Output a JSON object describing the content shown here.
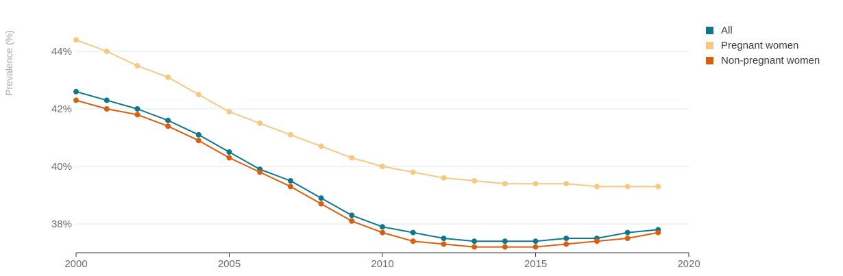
{
  "chart_data": {
    "type": "line",
    "title": "",
    "xlabel": "",
    "ylabel": "Prevalence (%)",
    "x": [
      2000,
      2001,
      2002,
      2003,
      2004,
      2005,
      2006,
      2007,
      2008,
      2009,
      2010,
      2011,
      2012,
      2013,
      2014,
      2015,
      2016,
      2017,
      2018,
      2019
    ],
    "xlim": [
      2000,
      2020
    ],
    "x_ticks": [
      {
        "value": 2000,
        "label": "2000"
      },
      {
        "value": 2005,
        "label": "2005"
      },
      {
        "value": 2010,
        "label": "2010"
      },
      {
        "value": 2015,
        "label": "2015"
      },
      {
        "value": 2020,
        "label": "2020"
      }
    ],
    "ylim": [
      37,
      45
    ],
    "y_ticks": [
      {
        "value": 38,
        "label": "38%"
      },
      {
        "value": 40,
        "label": "40%"
      },
      {
        "value": 42,
        "label": "42%"
      },
      {
        "value": 44,
        "label": "44%"
      }
    ],
    "grid": "horizontal",
    "legend_position": "top-right",
    "series": [
      {
        "name": "All",
        "color": "#10768e",
        "values": [
          42.6,
          42.3,
          42.0,
          41.6,
          41.1,
          40.5,
          39.9,
          39.5,
          38.9,
          38.3,
          37.9,
          37.7,
          37.5,
          37.4,
          37.4,
          37.4,
          37.5,
          37.5,
          37.7,
          37.8
        ]
      },
      {
        "name": "Pregnant women",
        "color": "#f9c880",
        "values": [
          44.4,
          44.0,
          43.5,
          43.1,
          42.5,
          41.9,
          41.5,
          41.1,
          40.7,
          40.3,
          40.0,
          39.8,
          39.6,
          39.5,
          39.4,
          39.4,
          39.4,
          39.3,
          39.3,
          39.3
        ]
      },
      {
        "name": "Non-pregnant women",
        "color": "#d95f0e",
        "values": [
          42.3,
          42.0,
          41.8,
          41.4,
          40.9,
          40.3,
          39.8,
          39.3,
          38.7,
          38.1,
          37.7,
          37.4,
          37.3,
          37.2,
          37.2,
          37.2,
          37.3,
          37.4,
          37.5,
          37.7
        ]
      }
    ]
  }
}
